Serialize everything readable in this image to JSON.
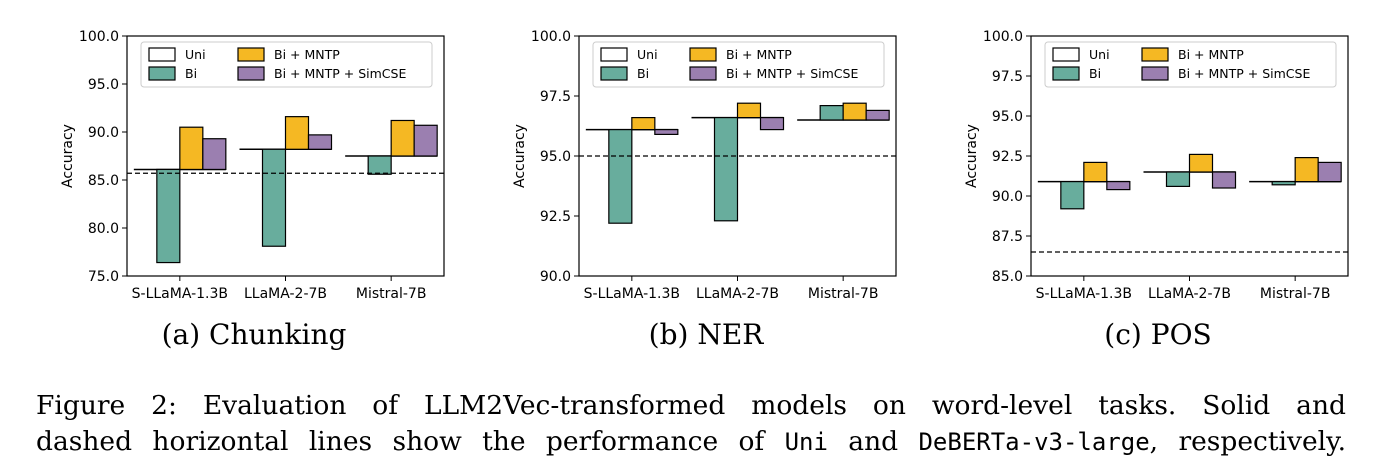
{
  "chart_data": [
    {
      "type": "bar",
      "subcaption": "(a) Chunking",
      "ylabel": "Accuracy",
      "ylim": [
        75.0,
        100.0
      ],
      "yticks": [
        "75.0",
        "80.0",
        "85.0",
        "90.0",
        "95.0",
        "100.0"
      ],
      "ytick_values": [
        75.0,
        80.0,
        85.0,
        90.0,
        95.0,
        100.0
      ],
      "categories": [
        "S-LLaMA-1.3B",
        "LLaMA-2-7B",
        "Mistral-7B"
      ],
      "baseline_dashed": 85.7,
      "series": [
        {
          "name": "Uni",
          "values": [
            86.1,
            88.2,
            87.5
          ]
        },
        {
          "name": "Bi",
          "values": [
            76.4,
            78.1,
            85.6
          ]
        },
        {
          "name": "Bi + MNTP",
          "values": [
            90.5,
            91.6,
            91.2
          ]
        },
        {
          "name": "Bi + MNTP + SimCSE",
          "values": [
            89.3,
            89.7,
            90.7
          ]
        }
      ]
    },
    {
      "type": "bar",
      "subcaption": "(b) NER",
      "ylabel": "Accuracy",
      "ylim": [
        90.0,
        100.0
      ],
      "yticks": [
        "90.0",
        "92.5",
        "95.0",
        "97.5",
        "100.0"
      ],
      "ytick_values": [
        90.0,
        92.5,
        95.0,
        97.5,
        100.0
      ],
      "categories": [
        "S-LLaMA-1.3B",
        "LLaMA-2-7B",
        "Mistral-7B"
      ],
      "baseline_dashed": 95.0,
      "series": [
        {
          "name": "Uni",
          "values": [
            96.1,
            96.6,
            96.5
          ]
        },
        {
          "name": "Bi",
          "values": [
            92.2,
            92.3,
            97.1
          ]
        },
        {
          "name": "Bi + MNTP",
          "values": [
            96.6,
            97.2,
            97.2
          ]
        },
        {
          "name": "Bi + MNTP + SimCSE",
          "values": [
            95.9,
            96.1,
            96.9
          ]
        }
      ]
    },
    {
      "type": "bar",
      "subcaption": "(c) POS",
      "ylabel": "Accuracy",
      "ylim": [
        85.0,
        100.0
      ],
      "yticks": [
        "85.0",
        "87.5",
        "90.0",
        "92.5",
        "95.0",
        "97.5",
        "100.0"
      ],
      "ytick_values": [
        85.0,
        87.5,
        90.0,
        92.5,
        95.0,
        97.5,
        100.0
      ],
      "categories": [
        "S-LLaMA-1.3B",
        "LLaMA-2-7B",
        "Mistral-7B"
      ],
      "baseline_dashed": 86.5,
      "series": [
        {
          "name": "Uni",
          "values": [
            90.9,
            91.5,
            90.9
          ]
        },
        {
          "name": "Bi",
          "values": [
            89.2,
            90.6,
            90.7
          ]
        },
        {
          "name": "Bi + MNTP",
          "values": [
            92.1,
            92.6,
            92.4
          ]
        },
        {
          "name": "Bi + MNTP + SimCSE",
          "values": [
            90.4,
            90.5,
            92.1
          ]
        }
      ]
    }
  ],
  "colors": {
    "Uni": "#ffffff",
    "Bi": "#68ad9d",
    "Bi + MNTP": "#f5b823",
    "Bi + MNTP + SimCSE": "#9b7fb0"
  },
  "caption": {
    "line1": "Figure 2: Evaluation of LLM2Vec-transformed models on word-level tasks. Solid and",
    "line2_pre": "dashed horizontal lines show the performance of ",
    "uni_code": "Uni",
    "line2_mid": " and ",
    "deberta_code": "DeBERTa-v3-large",
    "line2_post": ", respectively."
  }
}
